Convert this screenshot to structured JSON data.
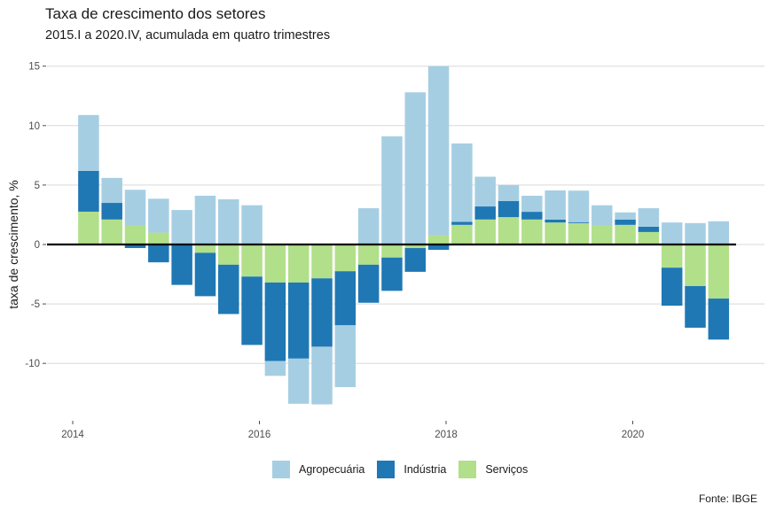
{
  "title": "Taxa de crescimento dos setores",
  "subtitle": "2015.I a 2020.IV, acumulada em quatro trimestres",
  "caption": "Fonte: IBGE",
  "chart_data": {
    "type": "bar",
    "stacked": true,
    "title": "Taxa de crescimento dos setores",
    "subtitle": "2015.I a 2020.IV, acumulada em quatro trimestres",
    "xlabel": "",
    "ylabel": "taxa de crescimento, %",
    "ylim": [
      -14,
      15
    ],
    "xlim": [
      2013.95,
      2021.3
    ],
    "yticks": [
      -10,
      -5,
      0,
      5,
      10,
      15
    ],
    "ytick_labels": [
      "-10",
      "-5",
      "0",
      "5",
      "10",
      "15"
    ],
    "xticks": [
      2014,
      2016,
      2018,
      2020
    ],
    "xtick_labels": [
      "2014",
      "2016",
      "2018",
      "2020"
    ],
    "grid": true,
    "zero_line": true,
    "legend_position": "bottom",
    "x": [
      2014.17,
      2014.42,
      2014.67,
      2014.92,
      2015.17,
      2015.42,
      2015.67,
      2015.92,
      2016.17,
      2016.42,
      2016.67,
      2016.92,
      2017.17,
      2017.42,
      2017.67,
      2017.92,
      2018.17,
      2018.42,
      2018.67,
      2018.92,
      2019.17,
      2019.42,
      2019.67,
      2019.92,
      2020.17,
      2020.42,
      2020.67,
      2020.92
    ],
    "series": [
      {
        "name": "Serviços",
        "color": "#b2df8a",
        "values": [
          2.76,
          2.1,
          1.6,
          1.0,
          0.0,
          -0.7,
          -1.7,
          -2.7,
          -3.2,
          -3.2,
          -2.85,
          -2.25,
          -1.7,
          -1.1,
          -0.3,
          0.75,
          1.65,
          2.1,
          2.3,
          2.1,
          1.85,
          1.8,
          1.6,
          1.65,
          1.05,
          -1.95,
          -3.5,
          -4.55
        ]
      },
      {
        "name": "Indústria",
        "color": "#1f78b4",
        "values": [
          3.43,
          1.4,
          -0.3,
          -1.5,
          -3.4,
          -3.65,
          -4.15,
          -5.75,
          -6.6,
          -6.4,
          -5.75,
          -4.55,
          -3.2,
          -2.8,
          -2.0,
          -0.45,
          0.25,
          1.1,
          1.35,
          0.65,
          0.25,
          0.08,
          0.0,
          0.45,
          0.45,
          -3.2,
          -3.5,
          -3.45
        ]
      },
      {
        "name": "Agropecuária",
        "color": "#a6cee3",
        "values": [
          4.7,
          2.1,
          3.0,
          2.85,
          2.9,
          4.1,
          3.8,
          3.3,
          -1.25,
          -3.8,
          -4.85,
          -5.2,
          3.05,
          9.1,
          12.8,
          14.25,
          6.6,
          2.5,
          1.35,
          1.35,
          2.45,
          2.65,
          1.7,
          0.6,
          1.55,
          1.85,
          1.8,
          1.95
        ]
      }
    ],
    "legend": [
      {
        "name": "Agropecuária",
        "color": "#a6cee3"
      },
      {
        "name": "Indústria",
        "color": "#1f78b4"
      },
      {
        "name": "Serviços",
        "color": "#b2df8a"
      }
    ]
  }
}
